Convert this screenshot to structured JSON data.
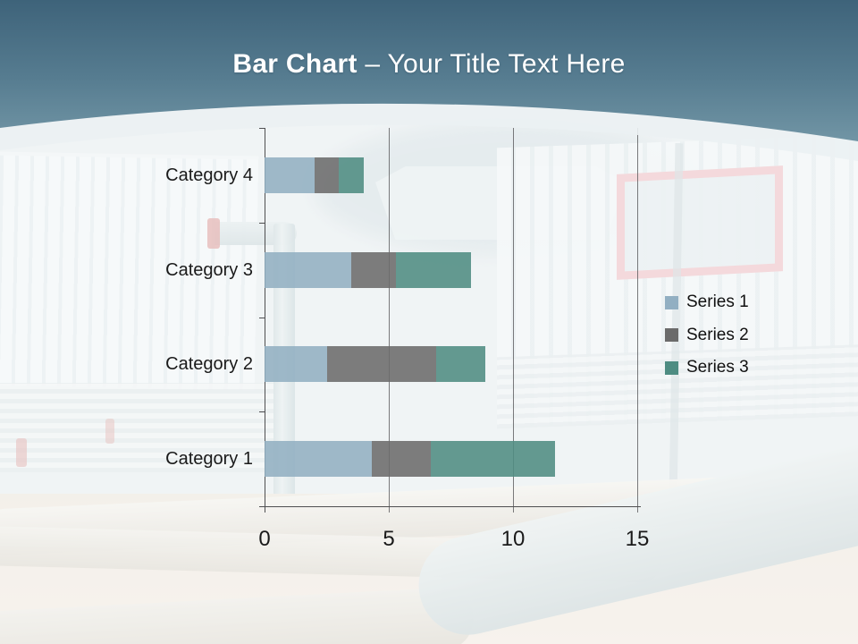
{
  "slide": {
    "title_bold": "Bar Chart",
    "title_rest": " – Your Title Text Here"
  },
  "chart_data": {
    "type": "bar",
    "orientation": "horizontal",
    "stacked": true,
    "title": "Bar Chart – Your Title Text Here",
    "categories": [
      "Category 1",
      "Category 2",
      "Category 3",
      "Category 4"
    ],
    "series": [
      {
        "name": "Series 1",
        "color": "#92AFC2",
        "values": [
          4.3,
          2.5,
          3.5,
          2
        ]
      },
      {
        "name": "Series 2",
        "color": "#6B6B6B",
        "values": [
          2.4,
          4.4,
          1.8,
          1
        ]
      },
      {
        "name": "Series 3",
        "color": "#4E8C82",
        "values": [
          5,
          2,
          3,
          1
        ]
      }
    ],
    "xlim": [
      0,
      15
    ],
    "xticks": [
      0,
      5,
      10,
      15
    ],
    "grid": true,
    "legend": {
      "position": "right"
    },
    "axis_color": "#4F4F51",
    "text_color": "#1A1A1A"
  },
  "theme": {
    "header_top": "#3E637A",
    "header_bottom": "#7195A5",
    "title_color": "#FFFFFF",
    "sign_border": "#F1BCC1"
  }
}
